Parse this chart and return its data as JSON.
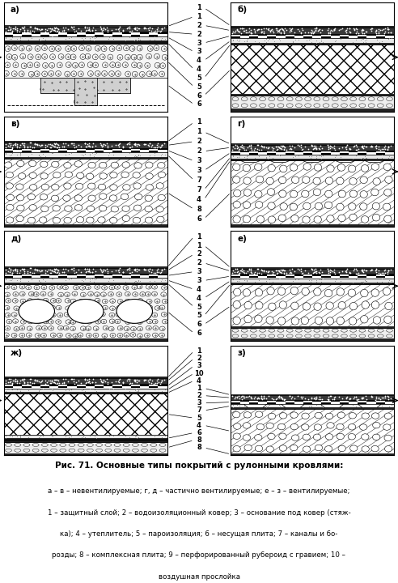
{
  "title": "Рис. 71. Основные типы покрытий с рулонными кровлями:",
  "caption_lines": [
    "а – в – невентилируемые; г, д – частично вентилируемые; е – з – вентилируемые;",
    "1 – защитный слой; 2 – водоизоляционный ковер; 3 – основание под ковер (стяж-",
    "ка); 4 – утеплитель; 5 – пароизоляция; 6 – несущая плита; 7 – каналы и бо-",
    "розды; 8 – комплексная плита; 9 – перфорированный рубероид с гравием; 10 –",
    "воздушная прослойка"
  ],
  "bg_color": "#ffffff"
}
